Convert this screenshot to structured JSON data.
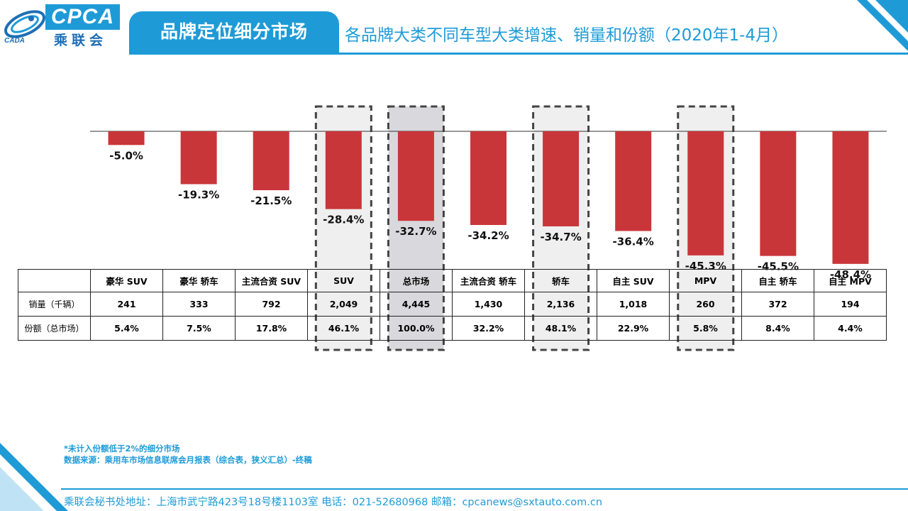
{
  "header": {
    "logo_text": "CPCA",
    "logo_cn": "乘联会",
    "logo_small": "CADA",
    "title": "品牌定位细分市场",
    "subtitle": "各品牌大类不同车型大类增速、销量和份额（2020年1-4月）"
  },
  "colors": {
    "accent": "#1e9bd7",
    "bar": "#c9363a",
    "highlight_light": "#efefef",
    "highlight_dark": "#d9d8dd"
  },
  "chart_data": {
    "type": "bar",
    "categories": [
      "豪华 SUV",
      "豪华 轿车",
      "主流合资 SUV",
      "SUV",
      "总市场",
      "主流合资 轿车",
      "轿车",
      "自主 SUV",
      "MPV",
      "自主 轿车",
      "自主 MPV"
    ],
    "values": [
      -5.0,
      -19.3,
      -21.5,
      -28.4,
      -32.7,
      -34.2,
      -34.7,
      -36.4,
      -45.3,
      -45.5,
      -48.4
    ],
    "value_labels": [
      "-5.0%",
      "-19.3%",
      "-21.5%",
      "-28.4%",
      "-32.7%",
      "-34.2%",
      "-34.7%",
      "-36.4%",
      "-45.3%",
      "-45.5%",
      "-48.4%"
    ],
    "highlighted": [
      "SUV",
      "总市场",
      "轿车",
      "MPV"
    ],
    "ylim": [
      -50,
      0
    ],
    "grid": false,
    "legend": "none"
  },
  "table": {
    "row_labels": [
      "销量（千辆）",
      "份额（总市场）"
    ],
    "sales": [
      "241",
      "333",
      "792",
      "2,049",
      "4,445",
      "1,430",
      "2,136",
      "1,018",
      "260",
      "372",
      "194"
    ],
    "share": [
      "5.4%",
      "7.5%",
      "17.8%",
      "46.1%",
      "100.0%",
      "32.2%",
      "48.1%",
      "22.9%",
      "5.8%",
      "8.4%",
      "4.4%"
    ]
  },
  "footnote": {
    "line1": "*未计入份额低于2%的细分市场",
    "line2": "数据来源：乘用车市场信息联席会月报表（综合表，狭义汇总）-终稿"
  },
  "footer": {
    "text": "乘联会秘书处地址：上海市武宁路423号18号楼1103室  电话：021-52680968   邮箱：cpcanews@sxtauto.com.cn"
  }
}
